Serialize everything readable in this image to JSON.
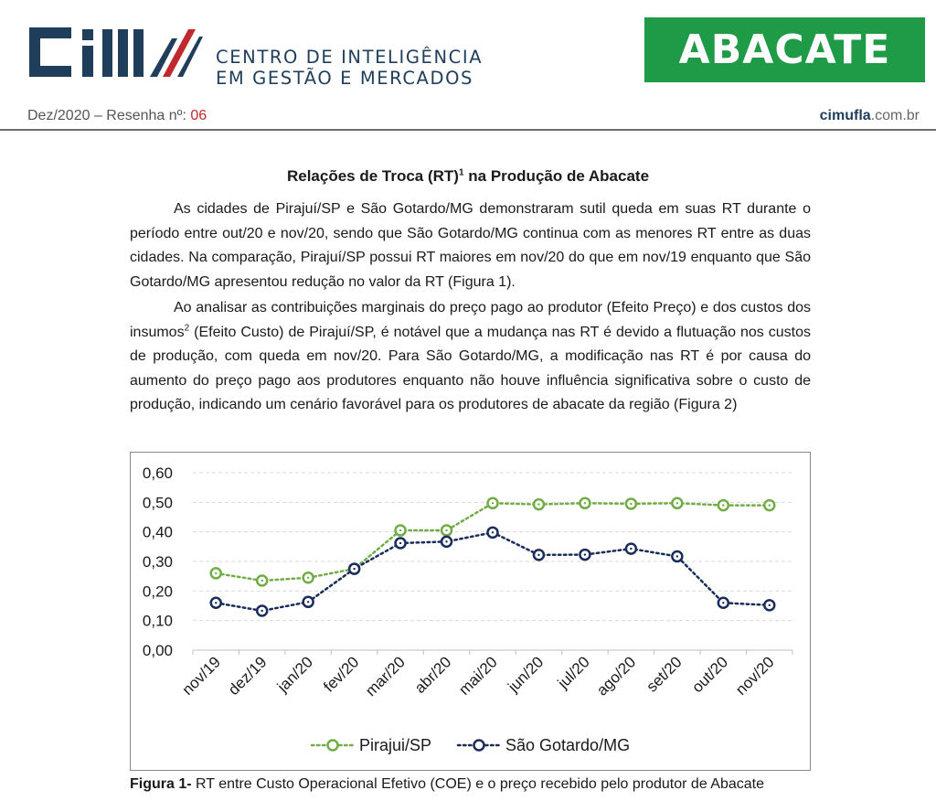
{
  "header": {
    "logo_alt": "CIM",
    "org_line1": "CENTRO DE INTELIGÊNCIA",
    "org_line2": "EM GESTÃO E MERCADOS",
    "product": "ABACATE",
    "issue_prefix": "Dez/2020 – Resenha nº: ",
    "issue_number": "06",
    "site_brand": "cimufla",
    "site_suffix": ".com.br"
  },
  "article": {
    "title": "Relações de Troca (RT)",
    "title_sup": "1",
    "title_tail": " na Produção de Abacate",
    "p1": "As cidades de Pirajuí/SP e São Gotardo/MG demonstraram sutil queda em suas RT durante o período entre out/20 e nov/20, sendo que São Gotardo/MG continua com as menores RT entre as duas cidades. Na comparação, Pirajuí/SP possui RT maiores em nov/20 do que em nov/19 enquanto que São Gotardo/MG apresentou redução no valor da RT (Figura 1).",
    "p2_a": "Ao analisar as contribuições marginais do preço pago ao produtor (Efeito Preço) e dos custos dos insumos",
    "p2_sup": "2",
    "p2_b": " (Efeito Custo) de Pirajuí/SP, é notável que a mudança nas RT é devido a flutuação nos custos de produção, com queda em nov/20. Para São Gotardo/MG, a modificação nas RT é por causa do aumento do preço pago aos produtores enquanto não houve influência significativa sobre o custo de produção, indicando um cenário favorável para os produtores de abacate da região (Figura 2)"
  },
  "caption": {
    "label": "Figura 1-",
    "text": " RT entre Custo Operacional Efetivo (COE) e o preço recebido pelo produtor de Abacate"
  },
  "colors": {
    "brand_navy": "#1f3e5b",
    "brand_red": "#c0282e",
    "banner_green": "#1f9a47",
    "series_pirajui": "#70ad47",
    "series_saogotardo": "#1a2d5a"
  },
  "chart_data": {
    "type": "line",
    "title": "",
    "xlabel": "",
    "ylabel": "",
    "ylim": [
      0,
      0.6
    ],
    "yticks": [
      "0,00",
      "0,10",
      "0,20",
      "0,30",
      "0,40",
      "0,50",
      "0,60"
    ],
    "categories": [
      "nov/19",
      "dez/19",
      "jan/20",
      "fev/20",
      "mar/20",
      "abr/20",
      "mai/20",
      "jun/20",
      "jul/20",
      "ago/20",
      "set/20",
      "out/20",
      "nov/20"
    ],
    "series": [
      {
        "name": "Pirajui/SP",
        "color": "#70ad47",
        "values": [
          0.26,
          0.235,
          0.245,
          0.275,
          0.405,
          0.405,
          0.497,
          0.493,
          0.497,
          0.495,
          0.497,
          0.49,
          0.49
        ]
      },
      {
        "name": "São Gotardo/MG",
        "color": "#1a2d5a",
        "values": [
          0.16,
          0.133,
          0.163,
          0.275,
          0.362,
          0.367,
          0.398,
          0.322,
          0.323,
          0.343,
          0.317,
          0.16,
          0.152
        ]
      }
    ],
    "grid": true,
    "legend": "bottom"
  }
}
